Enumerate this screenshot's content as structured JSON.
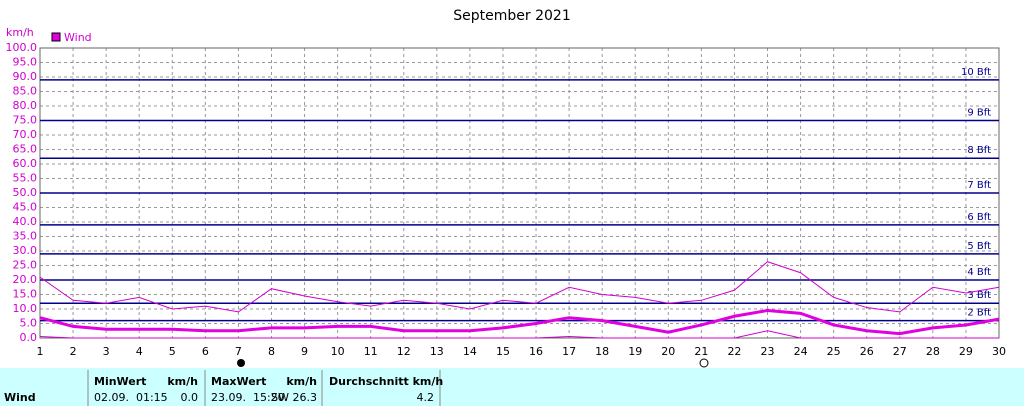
{
  "chart_data": {
    "type": "line",
    "title": "September 2021",
    "y_label": "km/h",
    "x": [
      1,
      2,
      3,
      4,
      5,
      6,
      7,
      8,
      9,
      10,
      11,
      12,
      13,
      14,
      15,
      16,
      17,
      18,
      19,
      20,
      21,
      22,
      23,
      24,
      25,
      26,
      27,
      28,
      29,
      30
    ],
    "xlim": [
      1,
      30
    ],
    "xticks": [
      1,
      2,
      3,
      4,
      5,
      6,
      7,
      8,
      9,
      10,
      11,
      12,
      13,
      14,
      15,
      16,
      17,
      18,
      19,
      20,
      21,
      22,
      23,
      24,
      25,
      26,
      27,
      28,
      29,
      30
    ],
    "ylim": [
      0,
      100
    ],
    "yticks": [
      {
        "value": 0,
        "label": "0.0"
      },
      {
        "value": 5,
        "label": "5.0"
      },
      {
        "value": 10,
        "label": "10.0"
      },
      {
        "value": 15,
        "label": "15.0"
      },
      {
        "value": 20,
        "label": "20.0"
      },
      {
        "value": 25,
        "label": "25.0"
      },
      {
        "value": 30,
        "label": "30.0"
      },
      {
        "value": 35,
        "label": "35.0"
      },
      {
        "value": 40,
        "label": "40.0"
      },
      {
        "value": 45,
        "label": "45.0"
      },
      {
        "value": 50,
        "label": "50.0"
      },
      {
        "value": 55,
        "label": "55.0"
      },
      {
        "value": 60,
        "label": "60.0"
      },
      {
        "value": 65,
        "label": "65.0"
      },
      {
        "value": 70,
        "label": "70.0"
      },
      {
        "value": 75,
        "label": "75.0"
      },
      {
        "value": 80,
        "label": "80.0"
      },
      {
        "value": 85,
        "label": "85.0"
      },
      {
        "value": 90,
        "label": "90.0"
      },
      {
        "value": 95,
        "label": "95.0"
      },
      {
        "value": 100,
        "label": "100.0"
      }
    ],
    "grid": true,
    "beaufort_lines": [
      {
        "value": 6,
        "label": "2 Bft"
      },
      {
        "value": 12,
        "label": "3 Bft"
      },
      {
        "value": 20,
        "label": "4 Bft"
      },
      {
        "value": 29,
        "label": "5 Bft"
      },
      {
        "value": 39,
        "label": "6 Bft"
      },
      {
        "value": 50,
        "label": "7 Bft"
      },
      {
        "value": 62,
        "label": "8 Bft"
      },
      {
        "value": 75,
        "label": "9 Bft"
      },
      {
        "value": 89,
        "label": "10 Bft"
      }
    ],
    "beaufort_color": "#00008b",
    "series": [
      {
        "name": "Wind",
        "color": "#e000e0",
        "values": [
          7,
          4,
          3,
          3,
          3,
          2.5,
          2.5,
          3.5,
          3.5,
          4,
          4,
          2.5,
          2.5,
          2.5,
          3.5,
          5,
          7,
          6,
          4,
          2,
          4.5,
          7.5,
          9.5,
          8.5,
          4.5,
          2.5,
          1.5,
          3.5,
          4.5,
          6.5
        ]
      },
      {
        "color": "#d000d0",
        "values": [
          21,
          13,
          12,
          14,
          10,
          11,
          9,
          17,
          14.5,
          12.5,
          11,
          13,
          12,
          10,
          13,
          12,
          17.5,
          15,
          14,
          12,
          13,
          16.5,
          26.3,
          22.5,
          14,
          10.5,
          9,
          17.5,
          15.5,
          17.5
        ]
      },
      {
        "color": "#d000d0",
        "values": [
          0.5,
          0,
          0,
          0,
          0,
          0,
          0,
          0,
          0,
          0,
          0,
          0,
          0,
          0,
          0,
          0,
          0.5,
          0,
          0,
          0,
          0,
          0,
          2.5,
          0,
          0,
          0,
          0,
          0,
          0,
          0
        ]
      }
    ]
  },
  "table": {
    "row_label": "Wind",
    "columns": [
      {
        "header": "MinWert",
        "unit": "km/h",
        "date": "02.09.  01:15",
        "value": "0.0"
      },
      {
        "header": "MaxWert",
        "unit": "km/h",
        "date": "23.09.  15:20",
        "value": "SW 26.3"
      },
      {
        "header": "Durchschnitt km/h",
        "value": "4.2"
      }
    ]
  }
}
